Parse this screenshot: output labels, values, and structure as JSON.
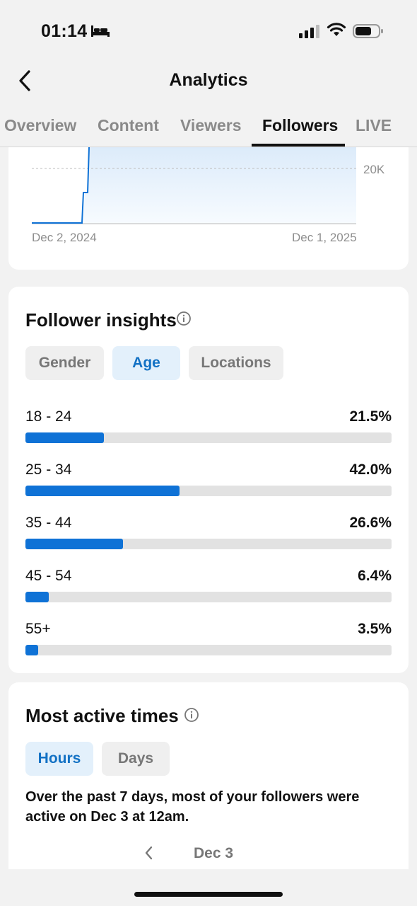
{
  "status_bar": {
    "time": "01:14",
    "icons": [
      "bed-icon",
      "signal-icon",
      "wifi-icon",
      "battery-icon"
    ]
  },
  "header": {
    "title": "Analytics",
    "back_icon": "chevron-left-icon"
  },
  "tabs": [
    {
      "label": "Overview",
      "active": false
    },
    {
      "label": "Content",
      "active": false
    },
    {
      "label": "Viewers",
      "active": false
    },
    {
      "label": "Followers",
      "active": true
    },
    {
      "label": "LIVE",
      "active": false
    }
  ],
  "follower_chart": {
    "y_tick": "20K",
    "x_start": "Dec 2, 2024",
    "x_end": "Dec 1, 2025",
    "line_color": "#0f72d6"
  },
  "insights": {
    "title": "Follower insights",
    "filters": [
      {
        "label": "Gender",
        "selected": false
      },
      {
        "label": "Age",
        "selected": true
      },
      {
        "label": "Locations",
        "selected": false
      }
    ],
    "age_groups": [
      {
        "label": "18 - 24",
        "percent_text": "21.5%",
        "value": 21.5
      },
      {
        "label": "25 - 34",
        "percent_text": "42.0%",
        "value": 42.0
      },
      {
        "label": "35 - 44",
        "percent_text": "26.6%",
        "value": 26.6
      },
      {
        "label": "45 - 54",
        "percent_text": "6.4%",
        "value": 6.4
      },
      {
        "label": "55+",
        "percent_text": "3.5%",
        "value": 3.5
      }
    ]
  },
  "active_times": {
    "title": "Most active times",
    "filters": [
      {
        "label": "Hours",
        "selected": true
      },
      {
        "label": "Days",
        "selected": false
      }
    ],
    "summary": "Over the past 7 days, most of your followers were active on Dec 3 at 12am.",
    "current_date": "Dec 3"
  },
  "colors": {
    "accent": "#0f72d6",
    "selected_chip_bg": "#e3f0fb",
    "selected_chip_text": "#1271c4"
  }
}
